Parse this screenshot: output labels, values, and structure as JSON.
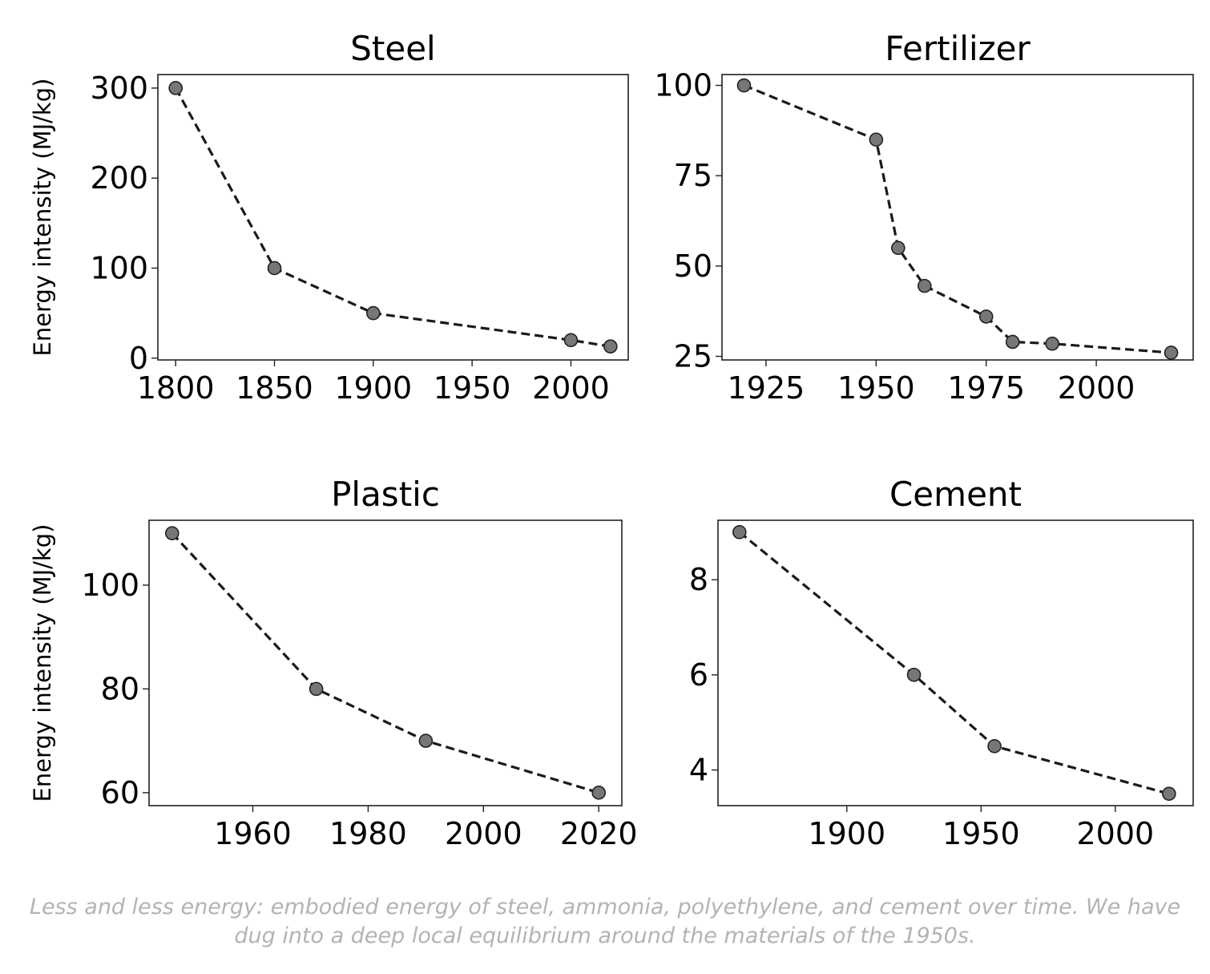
{
  "chart_data": [
    {
      "type": "line",
      "title": "Steel",
      "ylabel": "Energy intensity (MJ/kg)",
      "xlabel": "",
      "xlim": [
        1791,
        2029
      ],
      "ylim": [
        -2,
        315
      ],
      "x_ticks": [
        1800,
        1850,
        1900,
        1950,
        2000
      ],
      "y_ticks": [
        0,
        100,
        200,
        300
      ],
      "grid": false,
      "series": [
        {
          "x": [
            1800,
            1850,
            1900,
            2000,
            2020
          ],
          "y": [
            300,
            100,
            50,
            20,
            13
          ]
        }
      ]
    },
    {
      "type": "line",
      "title": "Fertilizer",
      "ylabel": "",
      "xlabel": "",
      "xlim": [
        1915,
        2022
      ],
      "ylim": [
        24,
        103
      ],
      "x_ticks": [
        1925,
        1950,
        1975,
        2000
      ],
      "y_ticks": [
        25,
        50,
        75,
        100
      ],
      "grid": false,
      "series": [
        {
          "x": [
            1920,
            1950,
            1955,
            1961,
            1975,
            1981,
            1990,
            2017
          ],
          "y": [
            100,
            85,
            55,
            44.5,
            36,
            29,
            28.5,
            26
          ]
        }
      ]
    },
    {
      "type": "line",
      "title": "Plastic",
      "ylabel": "Energy intensity (MJ/kg)",
      "xlabel": "",
      "xlim": [
        1942,
        2024
      ],
      "ylim": [
        57.5,
        112.5
      ],
      "x_ticks": [
        1960,
        1980,
        2000,
        2020
      ],
      "y_ticks": [
        60,
        80,
        100
      ],
      "grid": false,
      "series": [
        {
          "x": [
            1946,
            1971,
            1990,
            2020
          ],
          "y": [
            110,
            80,
            70,
            60
          ]
        }
      ]
    },
    {
      "type": "line",
      "title": "Cement",
      "ylabel": "",
      "xlabel": "",
      "xlim": [
        1852,
        2029
      ],
      "ylim": [
        3.25,
        9.25
      ],
      "x_ticks": [
        1900,
        1950,
        2000
      ],
      "y_ticks": [
        4,
        6,
        8
      ],
      "grid": false,
      "series": [
        {
          "x": [
            1860,
            1925,
            1955,
            2020
          ],
          "y": [
            9,
            6,
            4.5,
            3.5
          ]
        }
      ]
    }
  ],
  "caption": {
    "line1": "Less and less energy: embodied energy of steel, ammonia, polyethylene, and cement over time. We have",
    "line2": "dug into a deep local equilibrium around the materials of the 1950s."
  },
  "colors": {
    "marker_fill": "#777777",
    "line": "#1a1a1a",
    "caption_text": "#b3b3b3"
  }
}
